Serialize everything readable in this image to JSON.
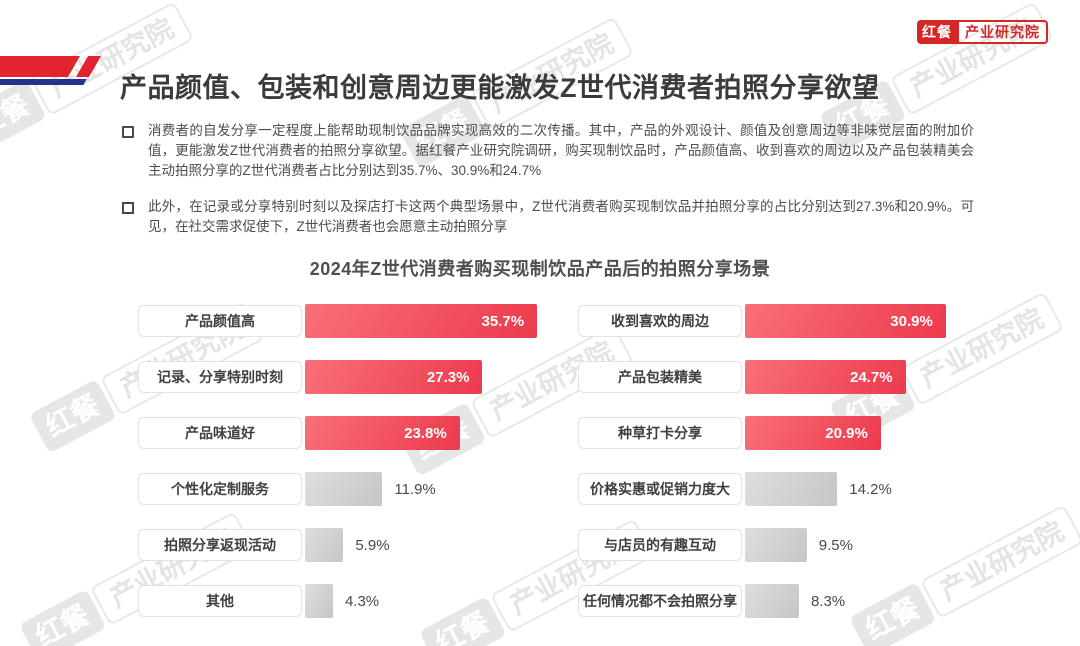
{
  "logo": {
    "brand": "红餐",
    "unit": "产业研究院"
  },
  "watermark": {
    "brand": "红餐",
    "unit": "产业研究院"
  },
  "title": "产品颜值、包装和创意周边更能激发Z世代消费者拍照分享欲望",
  "bullets": [
    "消费者的自发分享一定程度上能帮助现制饮品品牌实现高效的二次传播。其中，产品的外观设计、颜值及创意周边等非味觉层面的附加价值，更能激发Z世代消费者的拍照分享欲望。据红餐产业研究院调研，购买现制饮品时，产品颜值高、收到喜欢的周边以及产品包装精美会主动拍照分享的Z世代消费者占比分别达到35.7%、30.9%和24.7%",
    "此外，在记录或分享特别时刻以及探店打卡这两个典型场景中，Z世代消费者购买现制饮品并拍照分享的占比分别达到27.3%和20.9%。可见，在社交需求促使下，Z世代消费者也会愿意主动拍照分享"
  ],
  "chart_data": {
    "type": "bar",
    "orientation": "horizontal",
    "title": "2024年Z世代消费者购买现制饮品产品后的拍照分享场景",
    "unit": "%",
    "highlight_color": "#ec3a4d",
    "muted_color": "#cfcfcf",
    "legend": null,
    "grid": false,
    "columns": [
      {
        "items": [
          {
            "label": "产品颜值高",
            "value": 35.7,
            "display": "35.7%",
            "highlighted": true
          },
          {
            "label": "记录、分享特别时刻",
            "value": 27.3,
            "display": "27.3%",
            "highlighted": true
          },
          {
            "label": "产品味道好",
            "value": 23.8,
            "display": "23.8%",
            "highlighted": true
          },
          {
            "label": "个性化定制服务",
            "value": 11.9,
            "display": "11.9%",
            "highlighted": false
          },
          {
            "label": "拍照分享返现活动",
            "value": 5.9,
            "display": "5.9%",
            "highlighted": false
          },
          {
            "label": "其他",
            "value": 4.3,
            "display": "4.3%",
            "highlighted": false
          }
        ]
      },
      {
        "items": [
          {
            "label": "收到喜欢的周边",
            "value": 30.9,
            "display": "30.9%",
            "highlighted": true
          },
          {
            "label": "产品包装精美",
            "value": 24.7,
            "display": "24.7%",
            "highlighted": true
          },
          {
            "label": "种草打卡分享",
            "value": 20.9,
            "display": "20.9%",
            "highlighted": true
          },
          {
            "label": "价格实惠或促销力度大",
            "value": 14.2,
            "display": "14.2%",
            "highlighted": false
          },
          {
            "label": "与店员的有趣互动",
            "value": 9.5,
            "display": "9.5%",
            "highlighted": false
          },
          {
            "label": "任何情况都不会拍照分享",
            "value": 8.3,
            "display": "8.3%",
            "highlighted": false
          }
        ]
      }
    ]
  }
}
